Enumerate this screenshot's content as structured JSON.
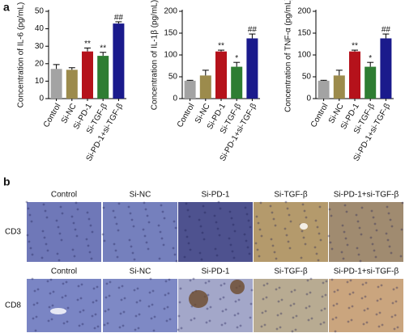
{
  "panel_labels": [
    "a",
    "b"
  ],
  "chart_data": [
    {
      "type": "bar",
      "y_label": "Concentration of IL-6 (pg/mL)",
      "categories": [
        "Control",
        "Si-NC",
        "Si-PD-1",
        "Si-TGF-β",
        "Si-PD-1+si-TGF-β"
      ],
      "values": [
        17,
        16.5,
        27,
        24.5,
        43
      ],
      "errors": [
        2.5,
        1.2,
        2,
        2,
        1
      ],
      "annotations": [
        null,
        null,
        "**",
        "**",
        "##"
      ],
      "colors": [
        "#a3a3a3",
        "#9c8b4c",
        "#b5121b",
        "#2e7d32",
        "#1a1a8c"
      ],
      "ylim": [
        0,
        50
      ],
      "yticks": [
        0,
        10,
        20,
        30,
        40,
        50
      ]
    },
    {
      "type": "bar",
      "y_label": "Concentration of IL-1β (pg/mL)",
      "categories": [
        "Control",
        "Si-NC",
        "Si-PD-1",
        "Si-TGF-β",
        "Si-PD-1+si-TGF-β"
      ],
      "values": [
        41,
        53,
        108,
        73,
        138
      ],
      "errors": [
        1,
        12,
        3,
        10,
        10
      ],
      "annotations": [
        null,
        null,
        "**",
        "*",
        "##"
      ],
      "colors": [
        "#a3a3a3",
        "#9c8b4c",
        "#b5121b",
        "#2e7d32",
        "#1a1a8c"
      ],
      "ylim": [
        0,
        200
      ],
      "yticks": [
        0,
        50,
        100,
        150,
        200
      ]
    },
    {
      "type": "bar",
      "y_label": "Concentration of TNF-α (pg/mL)",
      "categories": [
        "Control",
        "Si-NC",
        "Si-PD-1",
        "Si-TGF-β",
        "Si-PD-1+si-TGF-β"
      ],
      "values": [
        41,
        53,
        108,
        73,
        138
      ],
      "errors": [
        1,
        12,
        3,
        10,
        10
      ],
      "annotations": [
        null,
        null,
        "**",
        "*",
        "##"
      ],
      "colors": [
        "#a3a3a3",
        "#9c8b4c",
        "#b5121b",
        "#2e7d32",
        "#1a1a8c"
      ],
      "ylim": [
        0,
        200
      ],
      "yticks": [
        0,
        50,
        100,
        150,
        200
      ]
    }
  ],
  "panel_b": {
    "rows": [
      {
        "label": "CD3",
        "columns": [
          "Control",
          "Si-NC",
          "Si-PD-1",
          "Si-TGF-β",
          "Si-PD-1+si-TGF-β"
        ]
      },
      {
        "label": "CD8",
        "columns": [
          "Control",
          "Si-NC",
          "Si-PD-1",
          "Si-TGF-β",
          "Si-PD-1+si-TGF-β"
        ]
      }
    ]
  }
}
